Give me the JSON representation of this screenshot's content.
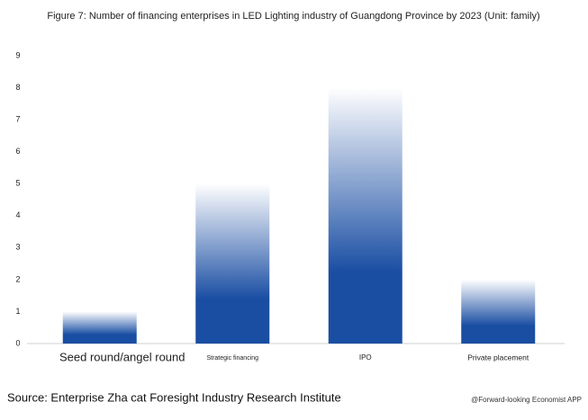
{
  "chart_data": {
    "type": "bar",
    "title": "Figure 7: Number of financing enterprises in LED Lighting industry of Guangdong Province by 2023 (Unit: family)",
    "categories": [
      "Seed round/angel round",
      "Strategic financing",
      "IPO",
      "Private placement"
    ],
    "values": [
      1,
      5,
      8,
      2
    ],
    "color": "#1a4ea3",
    "ylim": [
      0,
      9
    ],
    "yticks": [
      0,
      1,
      2,
      3,
      4,
      5,
      6,
      7,
      8,
      9
    ],
    "grid": false,
    "source": "Source: Enterprise Zha cat Foresight Industry Research Institute",
    "credit": "@Forward-looking Economist APP"
  }
}
